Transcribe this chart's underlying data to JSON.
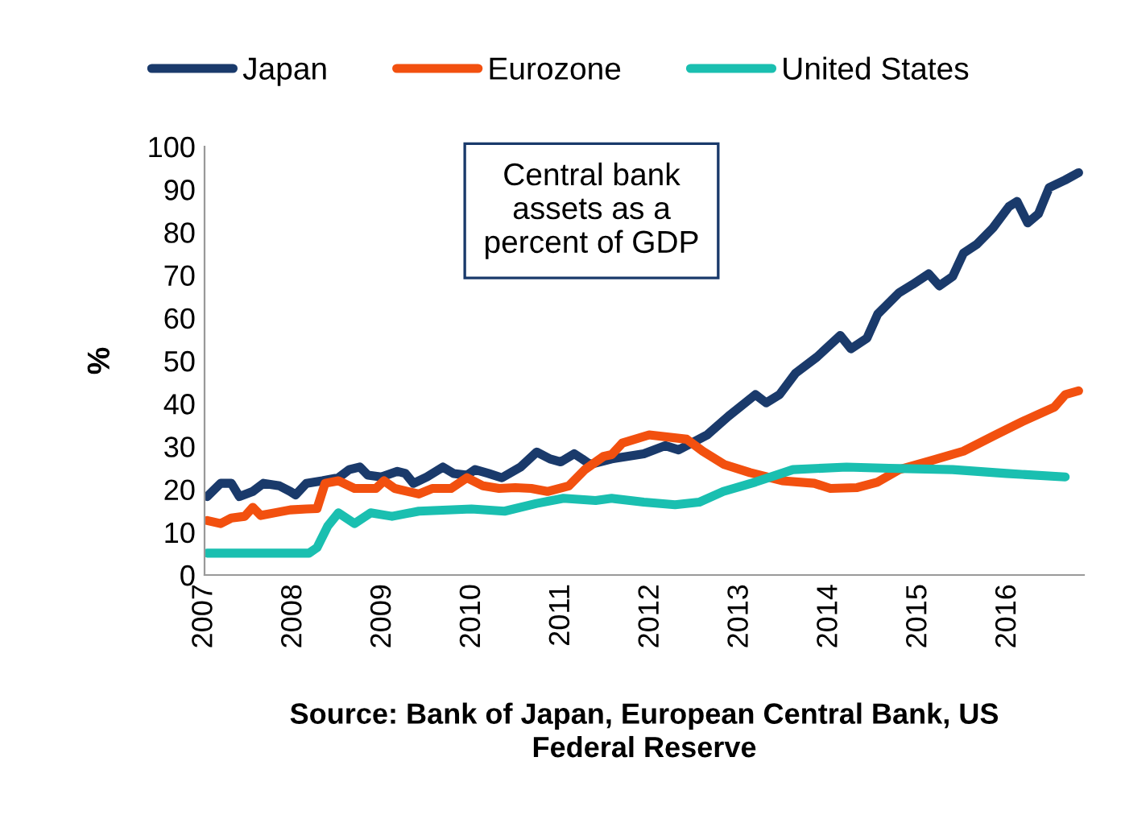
{
  "chart_data": {
    "type": "line",
    "ylabel": "%",
    "legend": "top",
    "grid": false,
    "marker": "none",
    "line_style": "solid",
    "xlim": [
      2007,
      2016.85
    ],
    "xticks": [
      2007,
      2008,
      2009,
      2010,
      2011,
      2012,
      2013,
      2014,
      2015,
      2016
    ],
    "ylim": [
      0,
      100
    ],
    "yticks": [
      0,
      10,
      20,
      30,
      40,
      50,
      60,
      70,
      80,
      90,
      100
    ],
    "annotations": [
      "Central bank\nassets as a\npercent of GDP",
      "Source: Bank of Japan, European Central Bank, US\nFederal Reserve"
    ],
    "series": [
      {
        "name": "Japan",
        "color": "#1a3a6b",
        "x": [
          2007.03,
          2007.18,
          2007.3,
          2007.39,
          2007.54,
          2007.66,
          2007.84,
          2007.96,
          2008.02,
          2008.14,
          2008.32,
          2008.5,
          2008.62,
          2008.74,
          2008.83,
          2008.98,
          2009.16,
          2009.25,
          2009.34,
          2009.49,
          2009.67,
          2009.79,
          2009.94,
          2010.03,
          2010.18,
          2010.33,
          2010.54,
          2010.72,
          2010.87,
          2010.99,
          2011.14,
          2011.23,
          2011.32,
          2011.56,
          2011.92,
          2012.16,
          2012.31,
          2012.63,
          2012.87,
          2013.17,
          2013.29,
          2013.44,
          2013.62,
          2013.86,
          2014.12,
          2014.24,
          2014.42,
          2014.54,
          2014.78,
          2014.93,
          2015.11,
          2015.23,
          2015.38,
          2015.5,
          2015.65,
          2015.83,
          2016.01,
          2016.1,
          2016.22,
          2016.34,
          2016.46,
          2016.64,
          2016.79
        ],
        "values": [
          18.3,
          21.4,
          21.4,
          18.3,
          19.5,
          21.4,
          20.8,
          19.5,
          18.7,
          21.4,
          22,
          22.7,
          24.6,
          25.2,
          23.3,
          22.9,
          24.2,
          23.7,
          21.4,
          22.9,
          25.2,
          23.7,
          23.3,
          24.6,
          23.7,
          22.7,
          25.2,
          28.7,
          27.1,
          26.4,
          28.3,
          27.1,
          25.8,
          27.1,
          28.3,
          30.2,
          29.2,
          32.7,
          37.1,
          42.1,
          40.2,
          42.1,
          47.1,
          50.9,
          55.9,
          52.8,
          55.3,
          60.9,
          65.9,
          67.8,
          70.3,
          67.5,
          69.7,
          75.1,
          77.2,
          81,
          86,
          87.2,
          82.2,
          84.3,
          90.4,
          92.2,
          93.9
        ]
      },
      {
        "name": "Eurozone",
        "color": "#f2500f",
        "x": [
          2007.03,
          2007.18,
          2007.3,
          2007.45,
          2007.54,
          2007.63,
          2007.78,
          2007.96,
          2008.14,
          2008.26,
          2008.35,
          2008.5,
          2008.68,
          2008.92,
          2009.01,
          2009.13,
          2009.4,
          2009.55,
          2009.76,
          2009.94,
          2010.12,
          2010.3,
          2010.48,
          2010.66,
          2010.84,
          2011.08,
          2011.26,
          2011.47,
          2011.56,
          2011.68,
          2011.98,
          2012.4,
          2012.58,
          2012.82,
          2013.11,
          2013.47,
          2013.83,
          2014.01,
          2014.31,
          2014.54,
          2014.78,
          2015.14,
          2015.5,
          2015.86,
          2016.16,
          2016.52,
          2016.64,
          2016.79
        ],
        "values": [
          12.7,
          12,
          13.3,
          13.7,
          15.8,
          13.9,
          14.5,
          15.2,
          15.4,
          15.5,
          21.4,
          22,
          20.2,
          20.2,
          22,
          20.2,
          18.9,
          20.2,
          20.2,
          22.7,
          20.8,
          20.2,
          20.4,
          20.2,
          19.5,
          20.8,
          24.6,
          27.7,
          28.1,
          30.8,
          32.7,
          31.7,
          28.9,
          25.8,
          23.9,
          22,
          21.4,
          20.2,
          20.4,
          21.7,
          24.6,
          26.7,
          28.9,
          32.7,
          35.8,
          39.2,
          42.1,
          43
        ]
      },
      {
        "name": "United States",
        "color": "#1abfb0",
        "x": [
          2007.03,
          2007.6,
          2008.17,
          2008.26,
          2008.38,
          2008.5,
          2008.68,
          2008.86,
          2009.1,
          2009.4,
          2009.99,
          2010.36,
          2010.72,
          2011.02,
          2011.38,
          2011.56,
          2011.92,
          2012.27,
          2012.54,
          2012.81,
          2013.17,
          2013.59,
          2014.19,
          2014.67,
          2015.38,
          2015.98,
          2016.64
        ],
        "values": [
          5.1,
          5.1,
          5.1,
          6.4,
          11.4,
          14.5,
          12,
          14.5,
          13.7,
          14.9,
          15.4,
          14.9,
          16.7,
          17.9,
          17.4,
          17.9,
          17,
          16.4,
          17,
          19.5,
          21.7,
          24.6,
          25.2,
          24.9,
          24.6,
          23.7,
          22.9
        ]
      }
    ]
  }
}
